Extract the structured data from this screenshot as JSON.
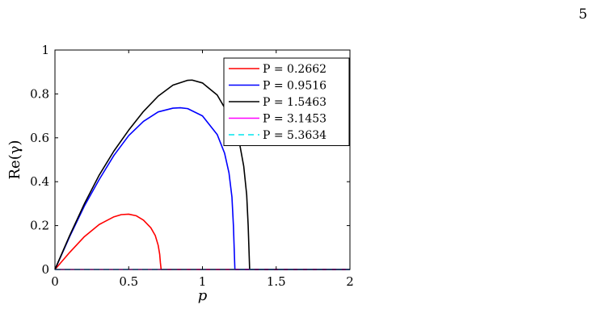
{
  "page": {
    "number": "5"
  },
  "chart_data": {
    "type": "line",
    "title": "",
    "xlabel": "p",
    "ylabel": "Re(γ)",
    "xlim": [
      0,
      2
    ],
    "ylim": [
      0,
      1
    ],
    "xticks": [
      "0",
      "0.5",
      "1",
      "1.5",
      "2"
    ],
    "yticks": [
      "0",
      "0.2",
      "0.4",
      "0.6",
      "0.8",
      "1"
    ],
    "grid": false,
    "legend_position": "top-right",
    "series": [
      {
        "name": "P = 0.2662",
        "color": "#ff0000",
        "dash": "solid",
        "x": [
          0,
          0.1,
          0.2,
          0.3,
          0.4,
          0.45,
          0.5,
          0.55,
          0.6,
          0.65,
          0.68,
          0.7,
          0.71,
          0.715,
          0.72,
          1.0,
          1.5,
          2.0
        ],
        "y": [
          0,
          0.078,
          0.15,
          0.205,
          0.24,
          0.25,
          0.252,
          0.245,
          0.225,
          0.19,
          0.155,
          0.11,
          0.07,
          0.03,
          0,
          0,
          0,
          0
        ]
      },
      {
        "name": "P = 0.9516",
        "color": "#0000ff",
        "dash": "solid",
        "x": [
          0,
          0.1,
          0.2,
          0.3,
          0.4,
          0.5,
          0.6,
          0.7,
          0.8,
          0.85,
          0.9,
          1.0,
          1.1,
          1.15,
          1.18,
          1.2,
          1.21,
          1.22,
          1.5,
          2.0
        ],
        "y": [
          0,
          0.15,
          0.29,
          0.41,
          0.52,
          0.61,
          0.675,
          0.718,
          0.735,
          0.737,
          0.733,
          0.7,
          0.615,
          0.53,
          0.44,
          0.33,
          0.2,
          0,
          0,
          0
        ]
      },
      {
        "name": "P = 1.5463",
        "color": "#000000",
        "dash": "solid",
        "x": [
          0,
          0.1,
          0.2,
          0.3,
          0.4,
          0.5,
          0.6,
          0.7,
          0.8,
          0.9,
          0.93,
          1.0,
          1.1,
          1.2,
          1.25,
          1.28,
          1.3,
          1.31,
          1.32,
          1.5,
          2.0
        ],
        "y": [
          0,
          0.155,
          0.3,
          0.43,
          0.54,
          0.635,
          0.72,
          0.79,
          0.84,
          0.862,
          0.863,
          0.85,
          0.795,
          0.68,
          0.58,
          0.47,
          0.34,
          0.2,
          0,
          0,
          0
        ]
      },
      {
        "name": "P = 3.1453",
        "color": "#ff00ff",
        "dash": "solid",
        "x": [
          0,
          2
        ],
        "y": [
          0,
          0
        ]
      },
      {
        "name": "P = 5.3634",
        "color": "#00e5ee",
        "dash": "dashed",
        "x": [
          0,
          2
        ],
        "y": [
          0,
          0
        ]
      }
    ]
  }
}
